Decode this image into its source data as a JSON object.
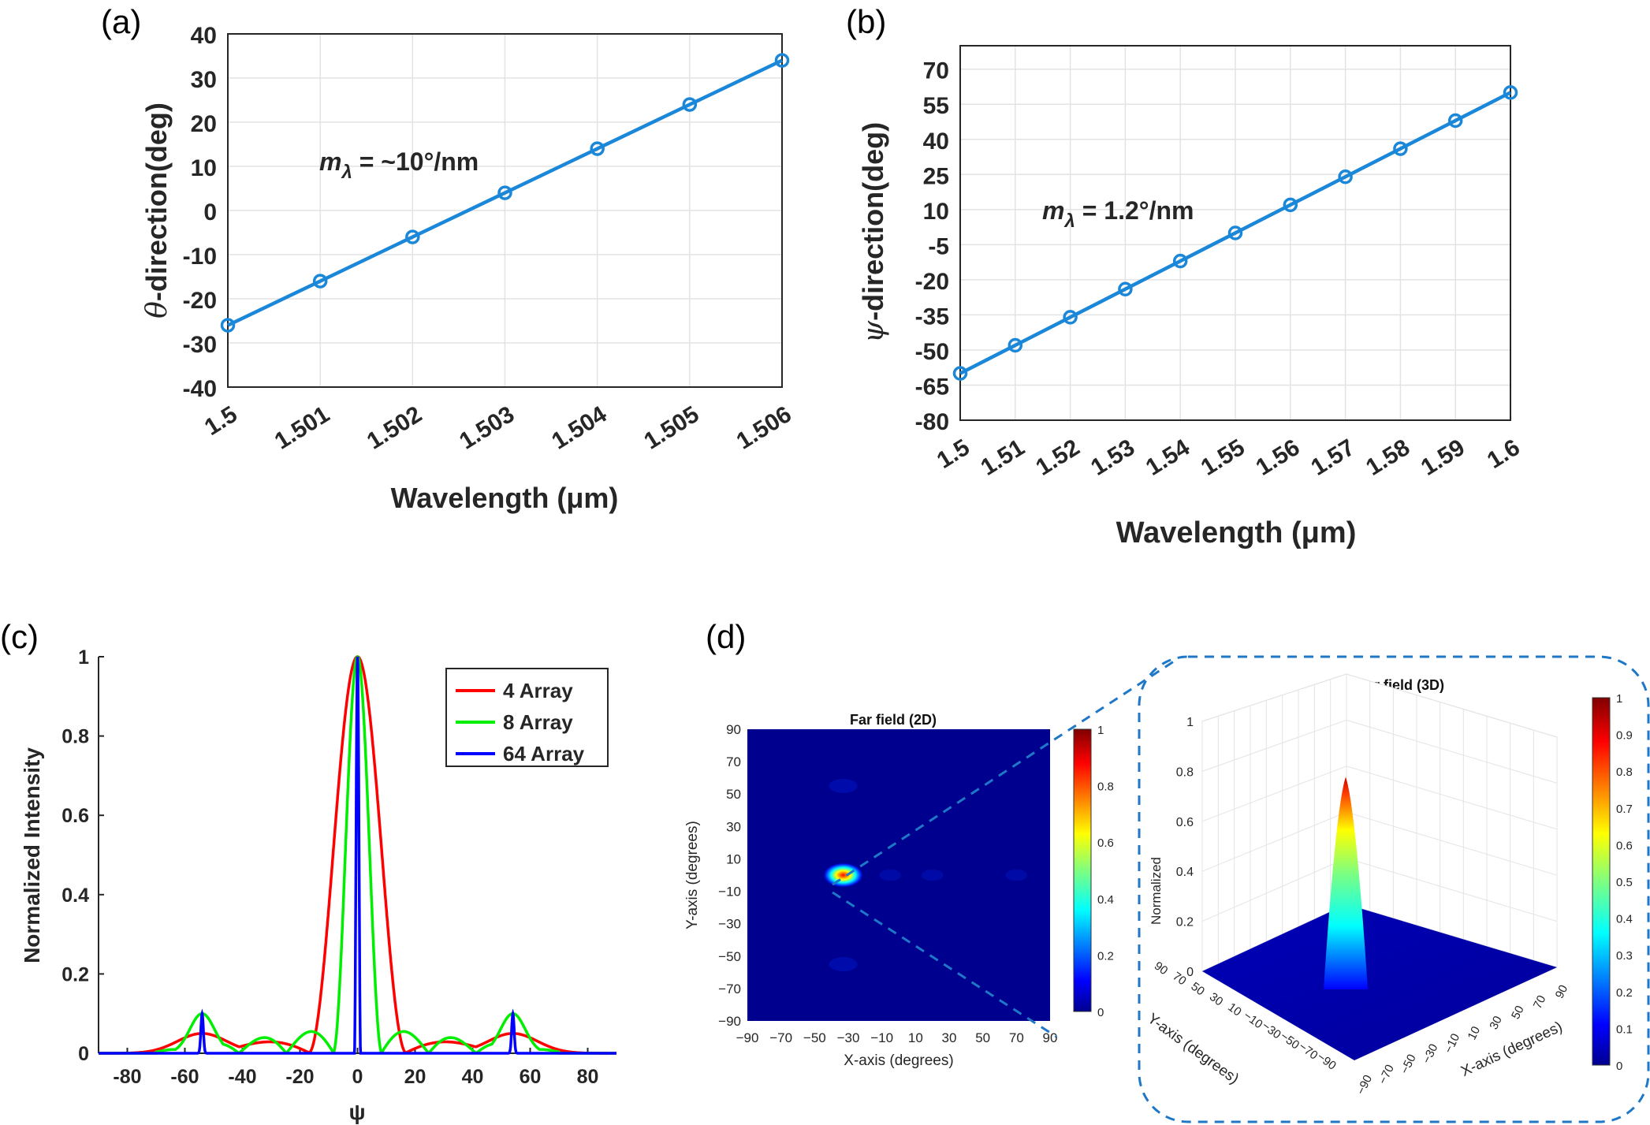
{
  "panels": [
    {
      "label": "(a)"
    },
    {
      "label": "(b)"
    },
    {
      "label": "(c)"
    },
    {
      "label": "(d)"
    }
  ],
  "colors": {
    "line_blue": "#1a87d9",
    "red": "#ff0000",
    "green": "#00ee00",
    "blue": "#0000ff",
    "grid": "#e3e3e3",
    "jet_low": "#00008f",
    "jet_high": "#800000"
  },
  "chart_data": [
    {
      "id": "a",
      "type": "line",
      "xlabel": "Wavelength (μm)",
      "ylabel_symbol": "θ",
      "ylabel": "-direction(deg)",
      "annotation": {
        "symbol": "m",
        "sub": "λ",
        "text": " = ~10°/nm"
      },
      "x": [
        1.5,
        1.501,
        1.502,
        1.503,
        1.504,
        1.505,
        1.506
      ],
      "y": [
        -26,
        -16,
        -6,
        4,
        14,
        24,
        34
      ],
      "xticks": [
        "1.5",
        "1.501",
        "1.502",
        "1.503",
        "1.504",
        "1.505",
        "1.506"
      ],
      "yticks": [
        "-40",
        "-30",
        "-20",
        "-10",
        "0",
        "10",
        "20",
        "30",
        "40"
      ],
      "xlim": [
        1.5,
        1.506
      ],
      "ylim": [
        -40,
        40
      ],
      "grid": true
    },
    {
      "id": "b",
      "type": "line",
      "xlabel": "Wavelength (μm)",
      "ylabel_symbol": "ψ",
      "ylabel": "-direction(deg)",
      "annotation": {
        "symbol": "m",
        "sub": "λ",
        "text": " = 1.2°/nm"
      },
      "x": [
        1.5,
        1.51,
        1.52,
        1.53,
        1.54,
        1.55,
        1.56,
        1.57,
        1.58,
        1.59,
        1.6
      ],
      "y": [
        -60,
        -48,
        -36,
        -24,
        -12,
        0,
        12,
        24,
        36,
        48,
        60
      ],
      "xticks": [
        "1.5",
        "1.51",
        "1.52",
        "1.53",
        "1.54",
        "1.55",
        "1.56",
        "1.57",
        "1.58",
        "1.59",
        "1.6"
      ],
      "yticks": [
        "-80",
        "-65",
        "-50",
        "-35",
        "-20",
        "-5",
        "10",
        "25",
        "40",
        "55",
        "70"
      ],
      "xlim": [
        1.5,
        1.6
      ],
      "ylim": [
        -80,
        80
      ],
      "grid": true
    },
    {
      "id": "c",
      "type": "line",
      "xlabel": "ψ",
      "ylabel": "Normalized Intensity",
      "xlim": [
        -90,
        90
      ],
      "ylim": [
        0,
        1
      ],
      "xticks": [
        "-80",
        "-60",
        "-40",
        "-20",
        "0",
        "20",
        "40",
        "60",
        "80"
      ],
      "yticks": [
        "0",
        "0.2",
        "0.4",
        "0.6",
        "0.8",
        "1"
      ],
      "legend_position": "top-right",
      "series": [
        {
          "name": "4 Array",
          "color": "#ff0000",
          "n": 4,
          "peak_width": 11,
          "sidelobe_height": 0.05,
          "grating_lobe_height": 0.05
        },
        {
          "name": "8 Array",
          "color": "#00ee00",
          "n": 8,
          "peak_width": 5.5,
          "sidelobe_height": 0.07,
          "grating_lobe_height": 0.1
        },
        {
          "name": "64 Array",
          "color": "#0000ff",
          "n": 64,
          "peak_width": 0.7,
          "sidelobe_height": 0.0,
          "grating_lobe_height": 0.1
        }
      ],
      "grating_lobe_positions": [
        -54,
        54
      ]
    },
    {
      "id": "d-2d",
      "type": "heatmap",
      "title": "Far field (2D)",
      "xlabel": "X-axis (degrees)",
      "ylabel": "Y-axis (degrees)",
      "xticks": [
        "−90",
        "−70",
        "−50",
        "−30",
        "−10",
        "10",
        "30",
        "50",
        "70",
        "90"
      ],
      "yticks": [
        "90",
        "70",
        "50",
        "30",
        "10",
        "−10",
        "−30",
        "−50",
        "−70",
        "−90"
      ],
      "xlim": [
        -90,
        90
      ],
      "ylim": [
        -90,
        90
      ],
      "peak": {
        "x": -33,
        "y": 0,
        "value": 1
      },
      "colorbar_ticks": [
        "1",
        "0.8",
        "0.6",
        "0.4",
        "0.2",
        "0"
      ]
    },
    {
      "id": "d-3d",
      "type": "surface",
      "title": "Far field (3D)",
      "xlabel": "X-axis (degrees)",
      "ylabel": "Y-axis (degrees)",
      "zlabel": "Normalized",
      "zticks": [
        "1",
        "0.8",
        "0.6",
        "0.4",
        "0.2",
        "0"
      ],
      "xticks": [
        "−90",
        "−70",
        "−50",
        "−30",
        "−10",
        "10",
        "30",
        "50",
        "70",
        "90"
      ],
      "yticks": [
        "90",
        "70",
        "50",
        "30",
        "10",
        "−10",
        "−30",
        "−50",
        "−70",
        "−90"
      ],
      "peak": {
        "x": -33,
        "y": 0,
        "value": 0.85
      },
      "colorbar_ticks": [
        "1",
        "0.9",
        "0.8",
        "0.7",
        "0.6",
        "0.5",
        "0.4",
        "0.3",
        "0.2",
        "0.1",
        "0"
      ]
    }
  ]
}
